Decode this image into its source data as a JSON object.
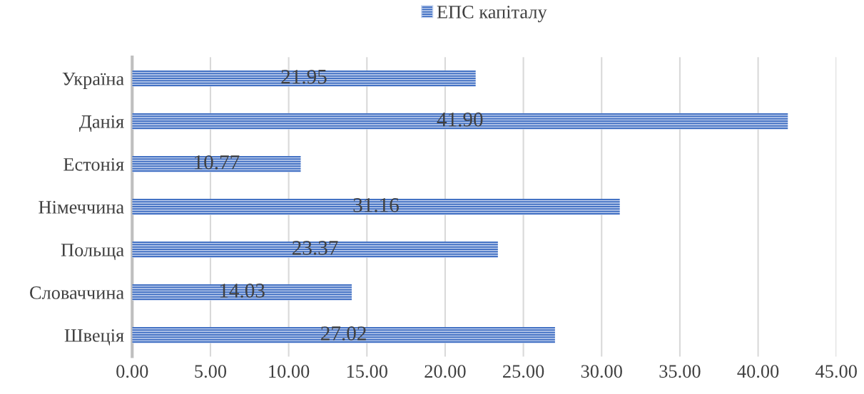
{
  "chart_data": {
    "type": "bar",
    "orientation": "horizontal",
    "categories": [
      "Україна",
      "Данія",
      "Естонія",
      "Німеччина",
      "Польща",
      "Словаччина",
      "Швеція"
    ],
    "series": [
      {
        "name": "ЕПС капіталу",
        "color": "#4472c4",
        "values": [
          21.95,
          41.9,
          10.77,
          31.16,
          23.37,
          14.03,
          27.02
        ]
      }
    ],
    "value_labels": [
      "21.95",
      "41.90",
      "10.77",
      "31.16",
      "23.37",
      "14.03",
      "27.02"
    ],
    "xlim": [
      0,
      45
    ],
    "xticks": [
      {
        "value": 0,
        "label": "0.00"
      },
      {
        "value": 5,
        "label": "5.00"
      },
      {
        "value": 10,
        "label": "10.00"
      },
      {
        "value": 15,
        "label": "15.00"
      },
      {
        "value": 20,
        "label": "20.00"
      },
      {
        "value": 25,
        "label": "25.00"
      },
      {
        "value": 30,
        "label": "30.00"
      },
      {
        "value": 35,
        "label": "35.00"
      },
      {
        "value": 40,
        "label": "40.00"
      },
      {
        "value": 45,
        "label": "45.00"
      }
    ],
    "grid": "x",
    "legend": "top"
  }
}
